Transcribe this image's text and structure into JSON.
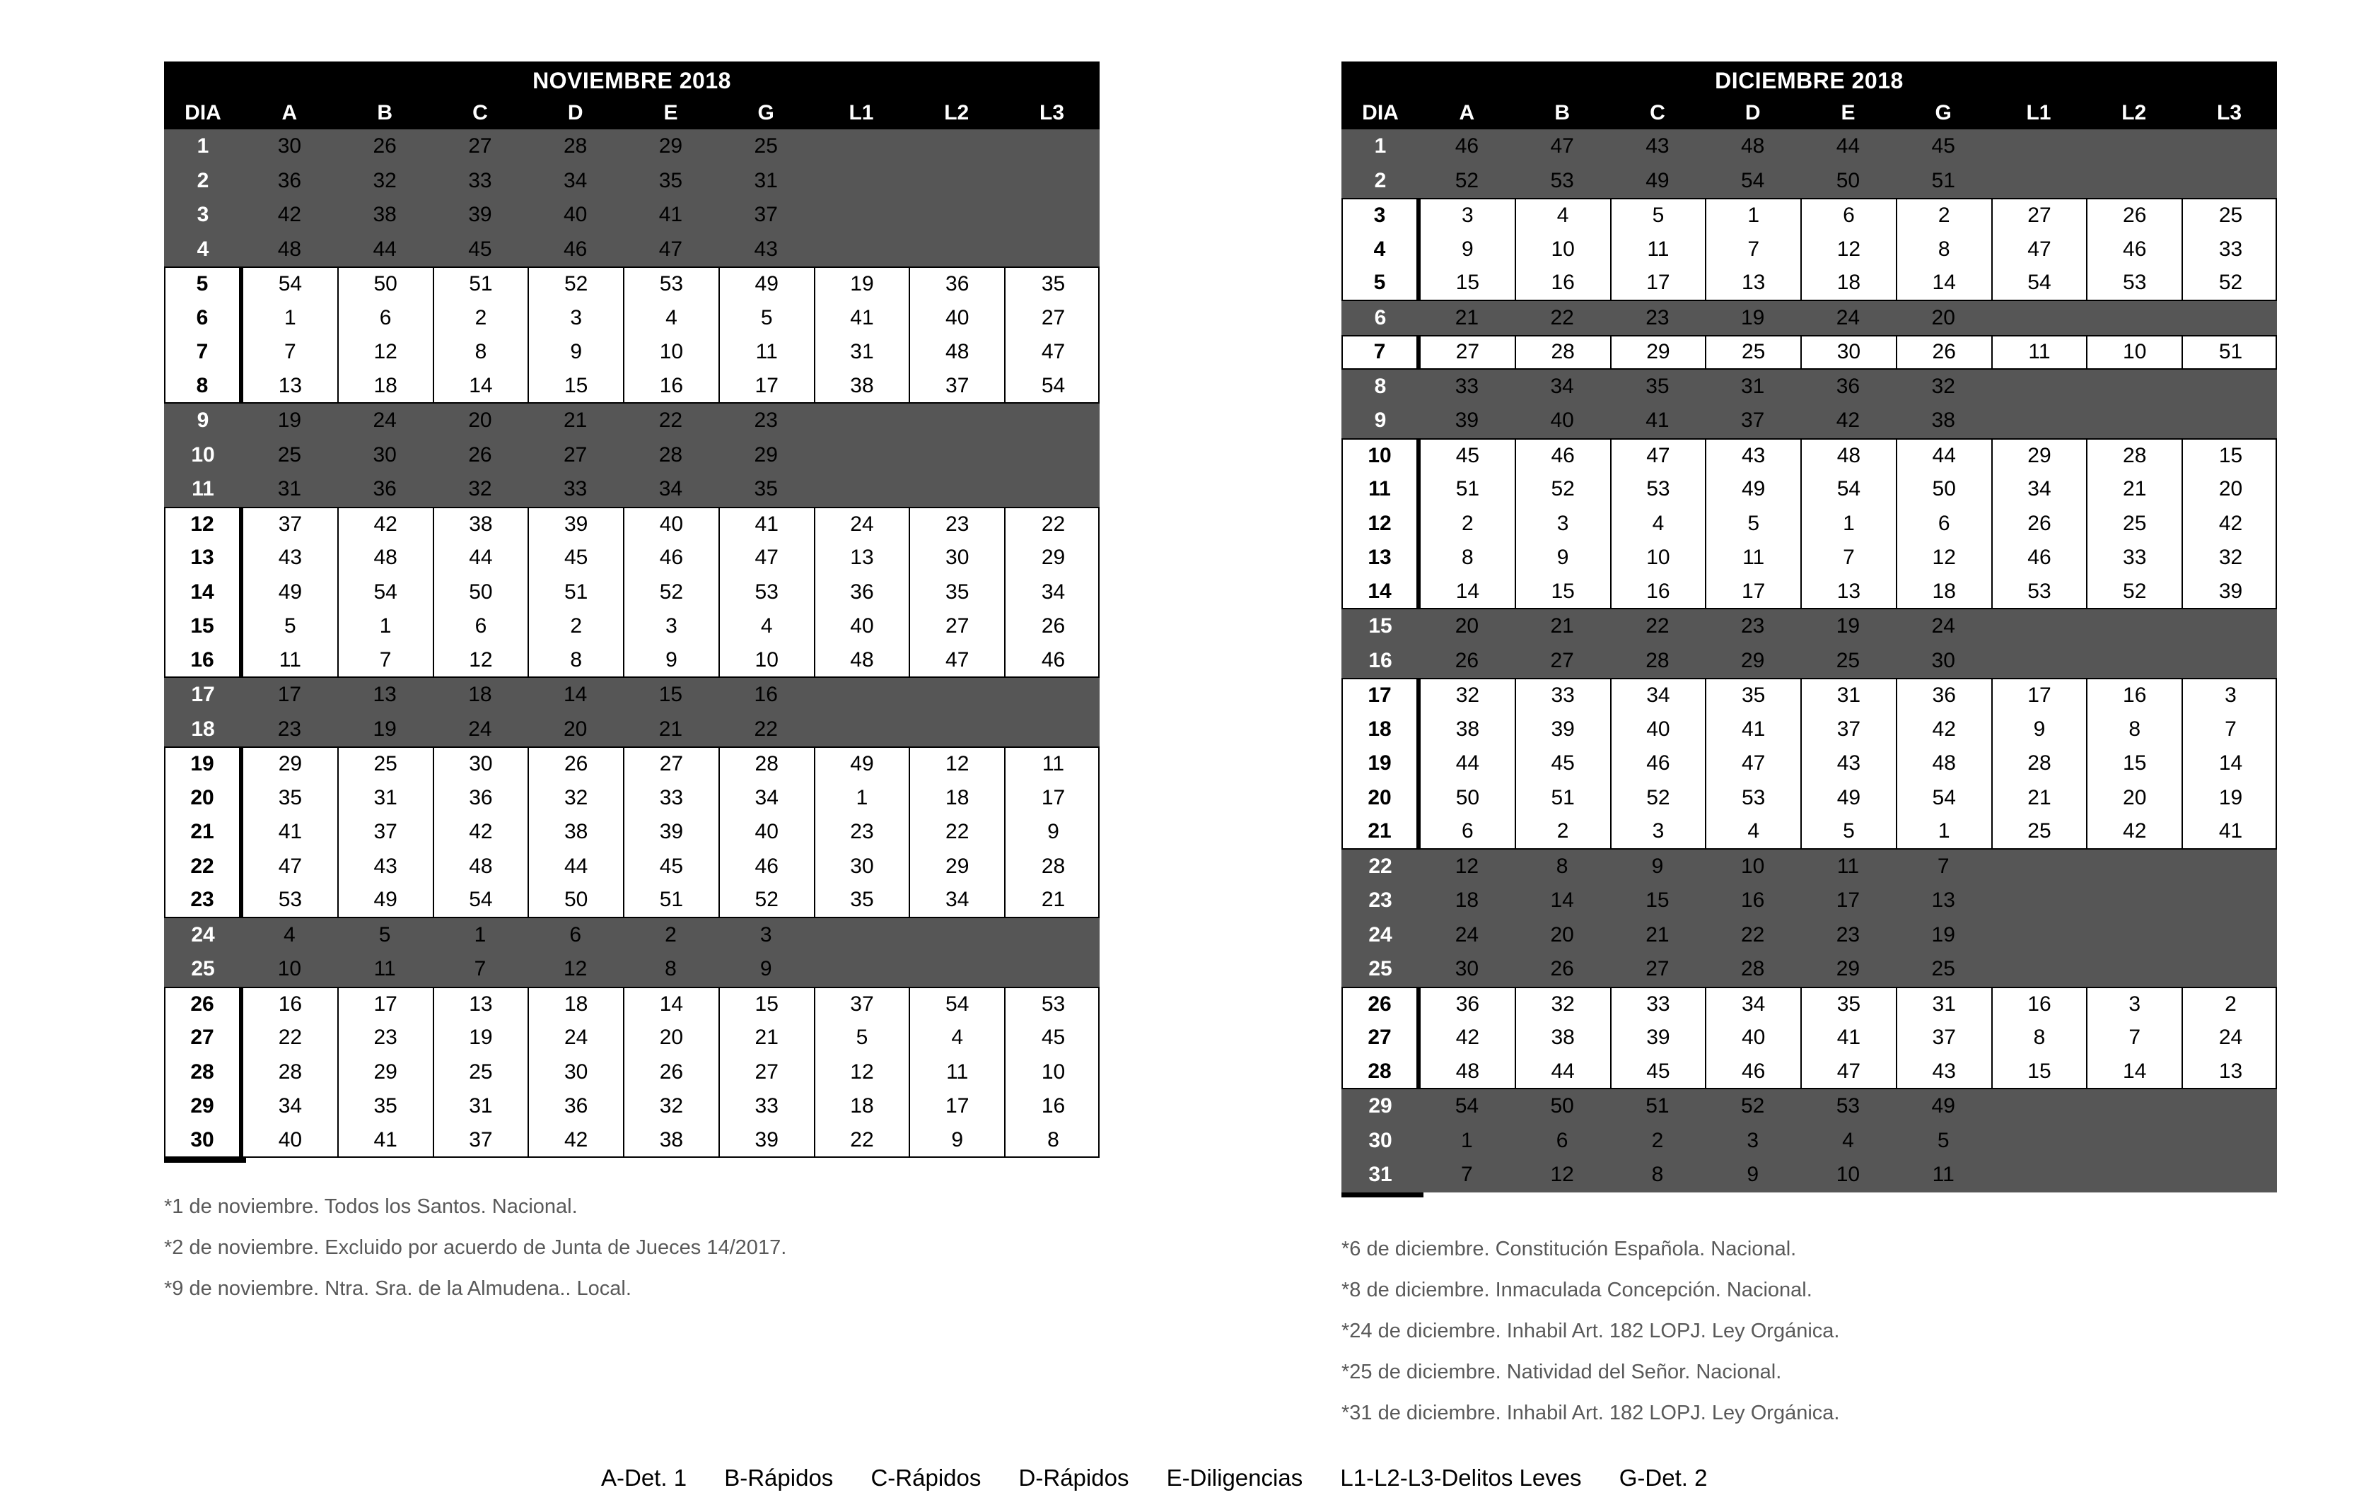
{
  "colors": {
    "header_bg": "#000000",
    "header_text": "#ffffff",
    "shaded_row_bg": "#565656",
    "shaded_day_text": "#ffffff",
    "value_text": "#000000",
    "footnote_text": "#595959"
  },
  "tables": [
    {
      "title": "NOVIEMBRE 2018",
      "columns": [
        "DIA",
        "A",
        "B",
        "C",
        "D",
        "E",
        "G",
        "L1",
        "L2",
        "L3"
      ],
      "rows": [
        {
          "day": "1",
          "shaded": true,
          "values": [
            "30",
            "26",
            "27",
            "28",
            "29",
            "25",
            "",
            "",
            ""
          ]
        },
        {
          "day": "2",
          "shaded": true,
          "values": [
            "36",
            "32",
            "33",
            "34",
            "35",
            "31",
            "",
            "",
            ""
          ]
        },
        {
          "day": "3",
          "shaded": true,
          "values": [
            "42",
            "38",
            "39",
            "40",
            "41",
            "37",
            "",
            "",
            ""
          ]
        },
        {
          "day": "4",
          "shaded": true,
          "values": [
            "48",
            "44",
            "45",
            "46",
            "47",
            "43",
            "",
            "",
            ""
          ]
        },
        {
          "day": "5",
          "shaded": false,
          "values": [
            "54",
            "50",
            "51",
            "52",
            "53",
            "49",
            "19",
            "36",
            "35"
          ]
        },
        {
          "day": "6",
          "shaded": false,
          "values": [
            "1",
            "6",
            "2",
            "3",
            "4",
            "5",
            "41",
            "40",
            "27"
          ]
        },
        {
          "day": "7",
          "shaded": false,
          "values": [
            "7",
            "12",
            "8",
            "9",
            "10",
            "11",
            "31",
            "48",
            "47"
          ]
        },
        {
          "day": "8",
          "shaded": false,
          "values": [
            "13",
            "18",
            "14",
            "15",
            "16",
            "17",
            "38",
            "37",
            "54"
          ]
        },
        {
          "day": "9",
          "shaded": true,
          "values": [
            "19",
            "24",
            "20",
            "21",
            "22",
            "23",
            "",
            "",
            ""
          ]
        },
        {
          "day": "10",
          "shaded": true,
          "values": [
            "25",
            "30",
            "26",
            "27",
            "28",
            "29",
            "",
            "",
            ""
          ]
        },
        {
          "day": "11",
          "shaded": true,
          "values": [
            "31",
            "36",
            "32",
            "33",
            "34",
            "35",
            "",
            "",
            ""
          ]
        },
        {
          "day": "12",
          "shaded": false,
          "values": [
            "37",
            "42",
            "38",
            "39",
            "40",
            "41",
            "24",
            "23",
            "22"
          ]
        },
        {
          "day": "13",
          "shaded": false,
          "values": [
            "43",
            "48",
            "44",
            "45",
            "46",
            "47",
            "13",
            "30",
            "29"
          ]
        },
        {
          "day": "14",
          "shaded": false,
          "values": [
            "49",
            "54",
            "50",
            "51",
            "52",
            "53",
            "36",
            "35",
            "34"
          ]
        },
        {
          "day": "15",
          "shaded": false,
          "values": [
            "5",
            "1",
            "6",
            "2",
            "3",
            "4",
            "40",
            "27",
            "26"
          ]
        },
        {
          "day": "16",
          "shaded": false,
          "values": [
            "11",
            "7",
            "12",
            "8",
            "9",
            "10",
            "48",
            "47",
            "46"
          ]
        },
        {
          "day": "17",
          "shaded": true,
          "values": [
            "17",
            "13",
            "18",
            "14",
            "15",
            "16",
            "",
            "",
            ""
          ]
        },
        {
          "day": "18",
          "shaded": true,
          "values": [
            "23",
            "19",
            "24",
            "20",
            "21",
            "22",
            "",
            "",
            ""
          ]
        },
        {
          "day": "19",
          "shaded": false,
          "values": [
            "29",
            "25",
            "30",
            "26",
            "27",
            "28",
            "49",
            "12",
            "11"
          ]
        },
        {
          "day": "20",
          "shaded": false,
          "values": [
            "35",
            "31",
            "36",
            "32",
            "33",
            "34",
            "1",
            "18",
            "17"
          ]
        },
        {
          "day": "21",
          "shaded": false,
          "values": [
            "41",
            "37",
            "42",
            "38",
            "39",
            "40",
            "23",
            "22",
            "9"
          ]
        },
        {
          "day": "22",
          "shaded": false,
          "values": [
            "47",
            "43",
            "48",
            "44",
            "45",
            "46",
            "30",
            "29",
            "28"
          ]
        },
        {
          "day": "23",
          "shaded": false,
          "values": [
            "53",
            "49",
            "54",
            "50",
            "51",
            "52",
            "35",
            "34",
            "21"
          ]
        },
        {
          "day": "24",
          "shaded": true,
          "values": [
            "4",
            "5",
            "1",
            "6",
            "2",
            "3",
            "",
            "",
            ""
          ]
        },
        {
          "day": "25",
          "shaded": true,
          "values": [
            "10",
            "11",
            "7",
            "12",
            "8",
            "9",
            "",
            "",
            ""
          ]
        },
        {
          "day": "26",
          "shaded": false,
          "values": [
            "16",
            "17",
            "13",
            "18",
            "14",
            "15",
            "37",
            "54",
            "53"
          ]
        },
        {
          "day": "27",
          "shaded": false,
          "values": [
            "22",
            "23",
            "19",
            "24",
            "20",
            "21",
            "5",
            "4",
            "45"
          ]
        },
        {
          "day": "28",
          "shaded": false,
          "values": [
            "28",
            "29",
            "25",
            "30",
            "26",
            "27",
            "12",
            "11",
            "10"
          ]
        },
        {
          "day": "29",
          "shaded": false,
          "values": [
            "34",
            "35",
            "31",
            "36",
            "32",
            "33",
            "18",
            "17",
            "16"
          ]
        },
        {
          "day": "30",
          "shaded": false,
          "values": [
            "40",
            "41",
            "37",
            "42",
            "38",
            "39",
            "22",
            "9",
            "8"
          ]
        }
      ],
      "footnotes": [
        "*1 de noviembre. Todos los Santos. Nacional.",
        "*2 de noviembre. Excluido por acuerdo de Junta de Jueces 14/2017.",
        "*9 de noviembre. Ntra. Sra. de la Almudena.. Local."
      ]
    },
    {
      "title": "DICIEMBRE 2018",
      "columns": [
        "DIA",
        "A",
        "B",
        "C",
        "D",
        "E",
        "G",
        "L1",
        "L2",
        "L3"
      ],
      "rows": [
        {
          "day": "1",
          "shaded": true,
          "values": [
            "46",
            "47",
            "43",
            "48",
            "44",
            "45",
            "",
            "",
            ""
          ]
        },
        {
          "day": "2",
          "shaded": true,
          "values": [
            "52",
            "53",
            "49",
            "54",
            "50",
            "51",
            "",
            "",
            ""
          ]
        },
        {
          "day": "3",
          "shaded": false,
          "values": [
            "3",
            "4",
            "5",
            "1",
            "6",
            "2",
            "27",
            "26",
            "25"
          ]
        },
        {
          "day": "4",
          "shaded": false,
          "values": [
            "9",
            "10",
            "11",
            "7",
            "12",
            "8",
            "47",
            "46",
            "33"
          ]
        },
        {
          "day": "5",
          "shaded": false,
          "values": [
            "15",
            "16",
            "17",
            "13",
            "18",
            "14",
            "54",
            "53",
            "52"
          ]
        },
        {
          "day": "6",
          "shaded": true,
          "values": [
            "21",
            "22",
            "23",
            "19",
            "24",
            "20",
            "",
            "",
            ""
          ]
        },
        {
          "day": "7",
          "shaded": false,
          "values": [
            "27",
            "28",
            "29",
            "25",
            "30",
            "26",
            "11",
            "10",
            "51"
          ]
        },
        {
          "day": "8",
          "shaded": true,
          "values": [
            "33",
            "34",
            "35",
            "31",
            "36",
            "32",
            "",
            "",
            ""
          ]
        },
        {
          "day": "9",
          "shaded": true,
          "values": [
            "39",
            "40",
            "41",
            "37",
            "42",
            "38",
            "",
            "",
            ""
          ]
        },
        {
          "day": "10",
          "shaded": false,
          "values": [
            "45",
            "46",
            "47",
            "43",
            "48",
            "44",
            "29",
            "28",
            "15"
          ]
        },
        {
          "day": "11",
          "shaded": false,
          "values": [
            "51",
            "52",
            "53",
            "49",
            "54",
            "50",
            "34",
            "21",
            "20"
          ]
        },
        {
          "day": "12",
          "shaded": false,
          "values": [
            "2",
            "3",
            "4",
            "5",
            "1",
            "6",
            "26",
            "25",
            "42"
          ]
        },
        {
          "day": "13",
          "shaded": false,
          "values": [
            "8",
            "9",
            "10",
            "11",
            "7",
            "12",
            "46",
            "33",
            "32"
          ]
        },
        {
          "day": "14",
          "shaded": false,
          "values": [
            "14",
            "15",
            "16",
            "17",
            "13",
            "18",
            "53",
            "52",
            "39"
          ]
        },
        {
          "day": "15",
          "shaded": true,
          "values": [
            "20",
            "21",
            "22",
            "23",
            "19",
            "24",
            "",
            "",
            ""
          ]
        },
        {
          "day": "16",
          "shaded": true,
          "values": [
            "26",
            "27",
            "28",
            "29",
            "25",
            "30",
            "",
            "",
            ""
          ]
        },
        {
          "day": "17",
          "shaded": false,
          "values": [
            "32",
            "33",
            "34",
            "35",
            "31",
            "36",
            "17",
            "16",
            "3"
          ]
        },
        {
          "day": "18",
          "shaded": false,
          "values": [
            "38",
            "39",
            "40",
            "41",
            "37",
            "42",
            "9",
            "8",
            "7"
          ]
        },
        {
          "day": "19",
          "shaded": false,
          "values": [
            "44",
            "45",
            "46",
            "47",
            "43",
            "48",
            "28",
            "15",
            "14"
          ]
        },
        {
          "day": "20",
          "shaded": false,
          "values": [
            "50",
            "51",
            "52",
            "53",
            "49",
            "54",
            "21",
            "20",
            "19"
          ]
        },
        {
          "day": "21",
          "shaded": false,
          "values": [
            "6",
            "2",
            "3",
            "4",
            "5",
            "1",
            "25",
            "42",
            "41"
          ]
        },
        {
          "day": "22",
          "shaded": true,
          "values": [
            "12",
            "8",
            "9",
            "10",
            "11",
            "7",
            "",
            "",
            ""
          ]
        },
        {
          "day": "23",
          "shaded": true,
          "values": [
            "18",
            "14",
            "15",
            "16",
            "17",
            "13",
            "",
            "",
            ""
          ]
        },
        {
          "day": "24",
          "shaded": true,
          "values": [
            "24",
            "20",
            "21",
            "22",
            "23",
            "19",
            "",
            "",
            ""
          ]
        },
        {
          "day": "25",
          "shaded": true,
          "values": [
            "30",
            "26",
            "27",
            "28",
            "29",
            "25",
            "",
            "",
            ""
          ]
        },
        {
          "day": "26",
          "shaded": false,
          "values": [
            "36",
            "32",
            "33",
            "34",
            "35",
            "31",
            "16",
            "3",
            "2"
          ]
        },
        {
          "day": "27",
          "shaded": false,
          "values": [
            "42",
            "38",
            "39",
            "40",
            "41",
            "37",
            "8",
            "7",
            "24"
          ]
        },
        {
          "day": "28",
          "shaded": false,
          "values": [
            "48",
            "44",
            "45",
            "46",
            "47",
            "43",
            "15",
            "14",
            "13"
          ]
        },
        {
          "day": "29",
          "shaded": true,
          "values": [
            "54",
            "50",
            "51",
            "52",
            "53",
            "49",
            "",
            "",
            ""
          ]
        },
        {
          "day": "30",
          "shaded": true,
          "values": [
            "1",
            "6",
            "2",
            "3",
            "4",
            "5",
            "",
            "",
            ""
          ]
        },
        {
          "day": "31",
          "shaded": true,
          "values": [
            "7",
            "12",
            "8",
            "9",
            "10",
            "11",
            "",
            "",
            ""
          ]
        }
      ],
      "footnotes": [
        "*6 de diciembre. Constitución Española. Nacional.",
        "*8 de diciembre. Inmaculada Concepción. Nacional.",
        "*24 de diciembre. Inhabil Art. 182 LOPJ. Ley Orgánica.",
        "*25 de diciembre. Natividad del Señor. Nacional.",
        "*31 de diciembre. Inhabil Art. 182 LOPJ. Ley Orgánica."
      ]
    }
  ],
  "legend": {
    "items": [
      "A-Det. 1",
      "B-Rápidos",
      "C-Rápidos",
      "D-Rápidos",
      "E-Diligencias",
      "L1-L2-L3-Delitos Leves",
      "G-Det. 2"
    ]
  }
}
